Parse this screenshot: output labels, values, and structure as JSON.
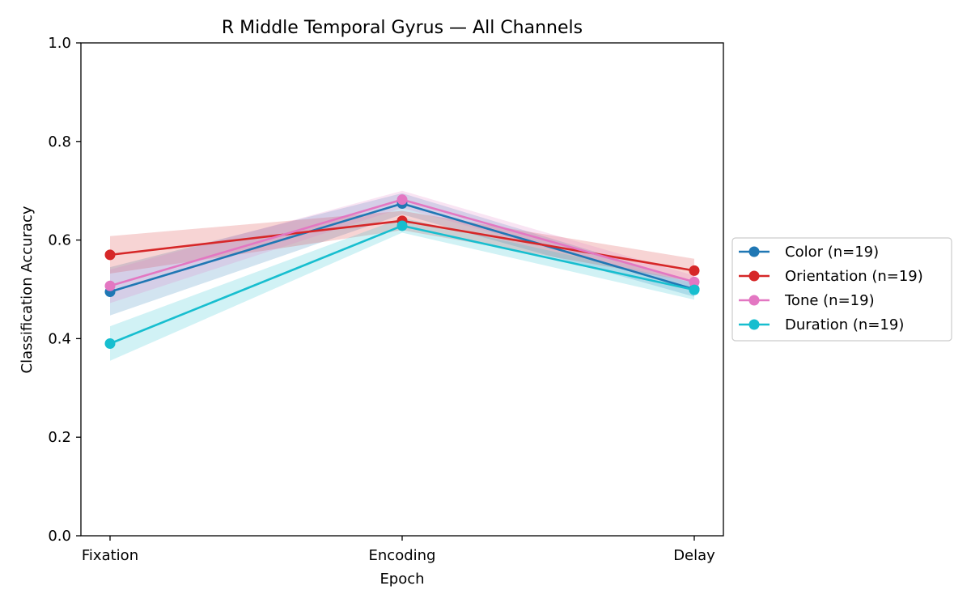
{
  "chart_data": {
    "type": "line",
    "title": "R Middle Temporal Gyrus — All Channels",
    "xlabel": "Epoch",
    "ylabel": "Classification Accuracy",
    "categories": [
      "Fixation",
      "Encoding",
      "Delay"
    ],
    "ylim": [
      0,
      1.0
    ],
    "yticks": [
      "0.0",
      "0.2",
      "0.4",
      "0.6",
      "0.8",
      "1.0"
    ],
    "legend_position": "right",
    "grid": false,
    "series": [
      {
        "name": "Color (n=19)",
        "color": "#1f77b4",
        "values": [
          0.495,
          0.674,
          0.5
        ],
        "upper": [
          0.545,
          0.695,
          0.515
        ],
        "lower": [
          0.447,
          0.652,
          0.485
        ]
      },
      {
        "name": "Orientation (n=19)",
        "color": "#d62728",
        "values": [
          0.57,
          0.639,
          0.538
        ],
        "upper": [
          0.608,
          0.659,
          0.562
        ],
        "lower": [
          0.532,
          0.62,
          0.515
        ]
      },
      {
        "name": "Tone (n=19)",
        "color": "#e377c2",
        "values": [
          0.507,
          0.682,
          0.515
        ],
        "upper": [
          0.54,
          0.7,
          0.528
        ],
        "lower": [
          0.472,
          0.665,
          0.502
        ]
      },
      {
        "name": "Duration (n=19)",
        "color": "#17becf",
        "values": [
          0.39,
          0.629,
          0.499
        ],
        "upper": [
          0.425,
          0.645,
          0.513
        ],
        "lower": [
          0.355,
          0.615,
          0.479
        ]
      }
    ]
  }
}
